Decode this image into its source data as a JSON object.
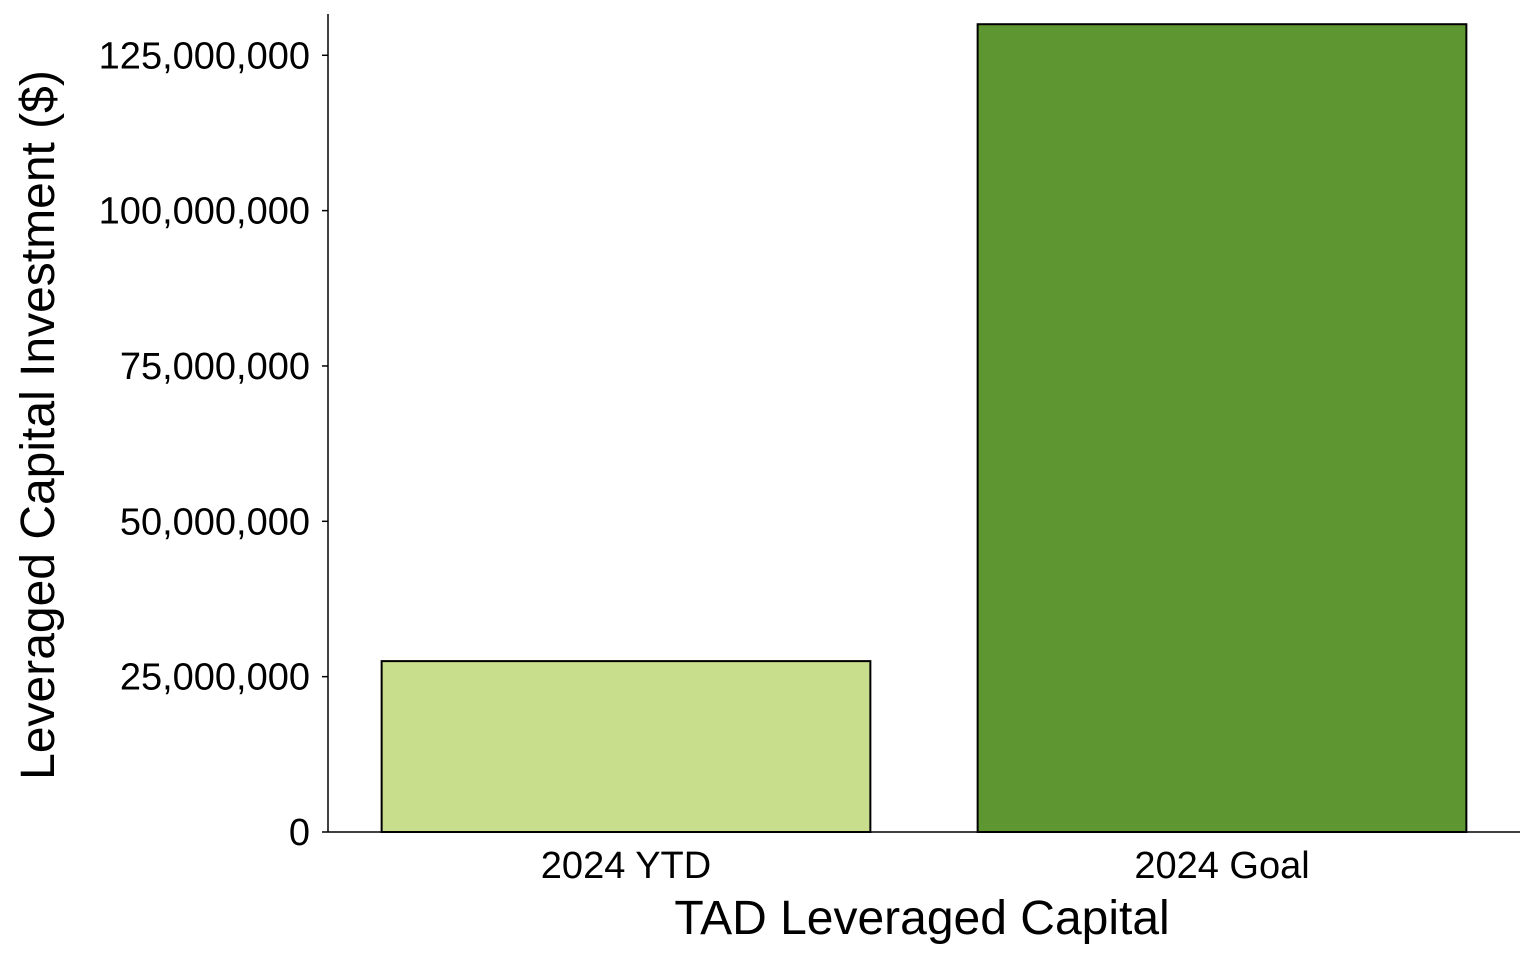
{
  "chart_data": {
    "type": "bar",
    "title": "",
    "xlabel": "TAD Leveraged Capital",
    "ylabel": "Leveraged Capital Investment ($)",
    "categories": [
      "2024 YTD",
      "2024 Goal"
    ],
    "values": [
      27500000,
      130000000
    ],
    "colors": [
      "#c9de8c",
      "#5e9732"
    ],
    "ylim": [
      0,
      131000000
    ],
    "yticks": [
      0,
      25000000,
      50000000,
      75000000,
      100000000,
      125000000
    ],
    "ytick_labels": [
      "0",
      "25,000,000",
      "50,000,000",
      "75,000,000",
      "100,000,000",
      "125,000,000"
    ],
    "grid": false,
    "legend": "none"
  }
}
